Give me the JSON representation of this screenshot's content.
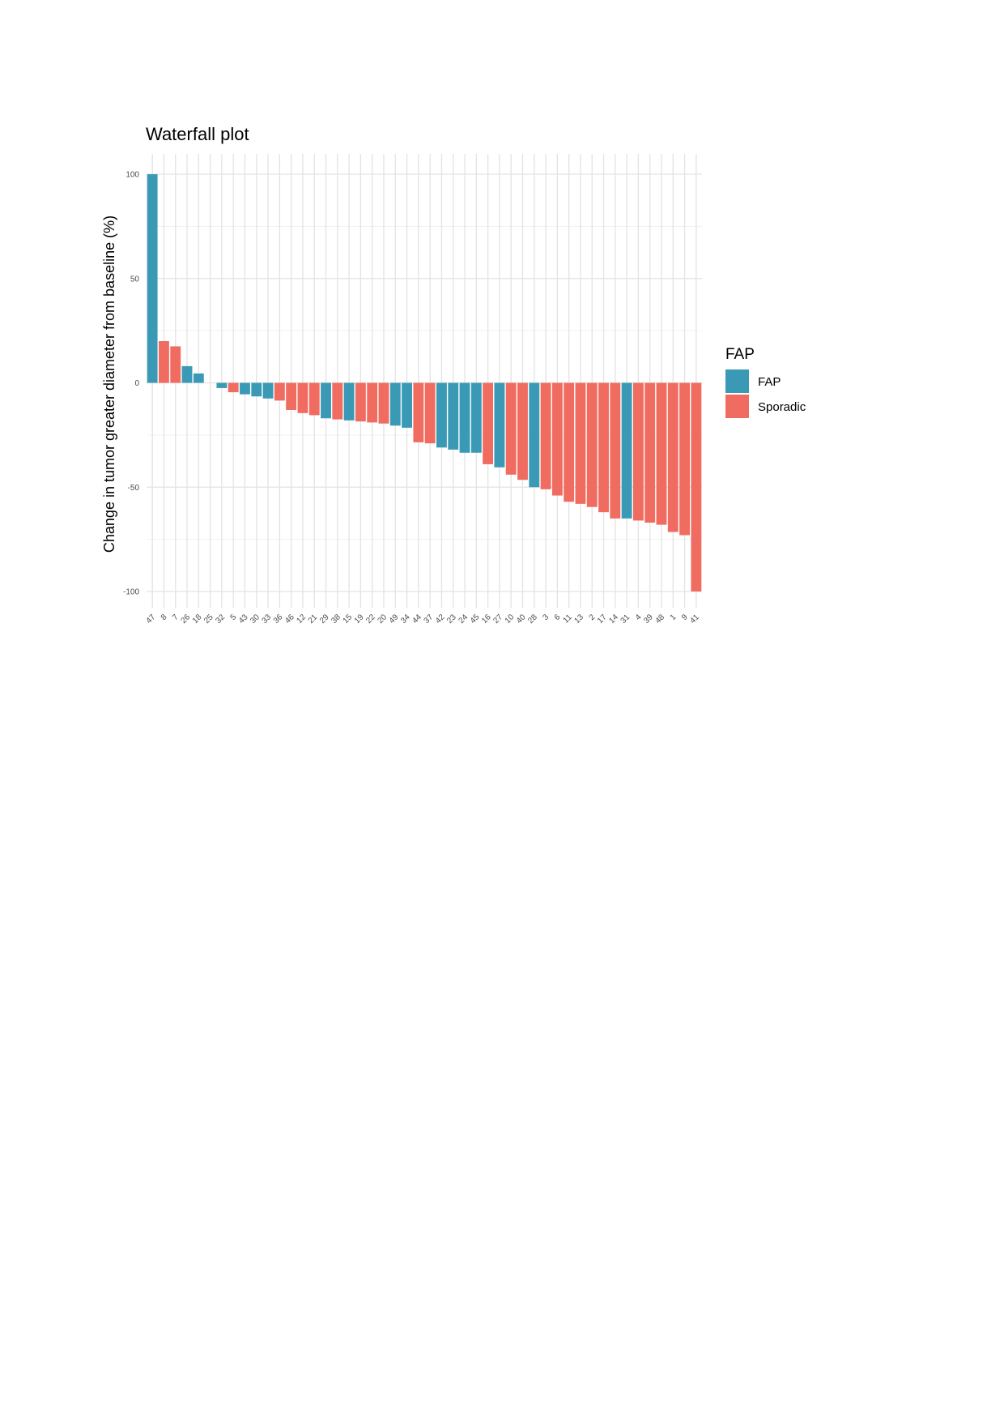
{
  "chart_data": {
    "type": "bar",
    "title": "Waterfall plot",
    "xlabel": "",
    "ylabel": "Change in tumor greater diameter from baseline (%)",
    "ylim": [
      -100,
      100
    ],
    "yticks": [
      100,
      50,
      0,
      -50,
      -100
    ],
    "grid": true,
    "legend": {
      "title": "FAP",
      "placement": "right",
      "entries": [
        {
          "name": "FAP",
          "color": "#3a9ab5"
        },
        {
          "name": "Sporadic",
          "color": "#f06b60"
        }
      ]
    },
    "categories": [
      "47",
      "8",
      "7",
      "26",
      "18",
      "25",
      "32",
      "5",
      "43",
      "30",
      "33",
      "36",
      "46",
      "12",
      "21",
      "29",
      "38",
      "15",
      "19",
      "22",
      "20",
      "49",
      "34",
      "44",
      "37",
      "42",
      "23",
      "24",
      "45",
      "16",
      "27",
      "10",
      "40",
      "28",
      "3",
      "6",
      "11",
      "13",
      "2",
      "17",
      "14",
      "31",
      "4",
      "39",
      "48",
      "1",
      "9",
      "41"
    ],
    "values": [
      100,
      20,
      17.5,
      8,
      4.5,
      0,
      -2.5,
      -4.5,
      -5.5,
      -6.5,
      -7.5,
      -8.5,
      -13,
      -14.5,
      -15.5,
      -17,
      -17.5,
      -18,
      -18.5,
      -19,
      -19.5,
      -20.5,
      -21.5,
      -28.5,
      -29,
      -31,
      -32,
      -33.5,
      -33.5,
      -39,
      -40.5,
      -44,
      -46.5,
      -50,
      -51,
      -54,
      -57,
      -58,
      -59.5,
      -62,
      -65,
      -65,
      -66,
      -67,
      -68,
      -71.5,
      -73,
      -100
    ],
    "groups": [
      "FAP",
      "Sporadic",
      "Sporadic",
      "FAP",
      "FAP",
      "FAP",
      "FAP",
      "Sporadic",
      "FAP",
      "FAP",
      "FAP",
      "Sporadic",
      "Sporadic",
      "Sporadic",
      "Sporadic",
      "FAP",
      "Sporadic",
      "FAP",
      "Sporadic",
      "Sporadic",
      "Sporadic",
      "FAP",
      "FAP",
      "Sporadic",
      "Sporadic",
      "FAP",
      "FAP",
      "FAP",
      "FAP",
      "Sporadic",
      "FAP",
      "Sporadic",
      "Sporadic",
      "FAP",
      "Sporadic",
      "Sporadic",
      "Sporadic",
      "Sporadic",
      "Sporadic",
      "Sporadic",
      "Sporadic",
      "FAP",
      "Sporadic",
      "Sporadic",
      "Sporadic",
      "Sporadic",
      "Sporadic",
      "Sporadic"
    ]
  }
}
